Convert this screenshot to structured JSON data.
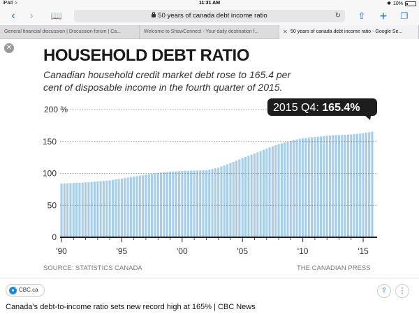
{
  "status_bar": {
    "device": "iPad",
    "time": "11:31 AM",
    "battery": "10%"
  },
  "toolbar": {
    "address": "50 years of canada debt income ratio"
  },
  "tabs": [
    {
      "label": "General financial discussion | Discussion forum | Ca...",
      "active": false
    },
    {
      "label": "Welcome to ShawConnect - Your daily destination f...",
      "active": false
    },
    {
      "label": "50 years of canada debt income ratio - Google Se...",
      "active": true
    }
  ],
  "article": {
    "headline": "HOUSEHOLD DEBT RATIO",
    "subhead": "Canadian household credit market debt rose to 165.4 per cent of disposable income in the fourth quarter of 2015.",
    "source": "SOURCE: STATISTICS CANADA",
    "credit": "THE CANADIAN PRESS"
  },
  "chart_data": {
    "type": "bar",
    "title": "HOUSEHOLD DEBT RATIO",
    "subtitle": "Canadian household credit market debt rose to 165.4 per cent of disposable income in the fourth quarter of 2015.",
    "xlabel": "",
    "ylabel": "",
    "ylim": [
      0,
      200
    ],
    "y_ticks": [
      "200 %",
      "150",
      "100",
      "50",
      "0"
    ],
    "x_ticks": [
      "'90",
      "'95",
      "'00",
      "'05",
      "'10",
      "'15"
    ],
    "x_range": [
      1990,
      2015.75
    ],
    "grid": true,
    "bar_color": "#a6cdec",
    "annotation": {
      "prefix": "2015 Q4: ",
      "value": "165.4%"
    },
    "anchors": [
      [
        1990,
        84
      ],
      [
        1992,
        86
      ],
      [
        1994,
        89
      ],
      [
        1996,
        95
      ],
      [
        1998,
        101
      ],
      [
        2000,
        104
      ],
      [
        2002,
        105
      ],
      [
        2003,
        109
      ],
      [
        2004,
        116
      ],
      [
        2005,
        124
      ],
      [
        2006,
        131
      ],
      [
        2007,
        139
      ],
      [
        2008,
        146
      ],
      [
        2009,
        151
      ],
      [
        2010,
        155
      ],
      [
        2011,
        157
      ],
      [
        2012,
        159
      ],
      [
        2013,
        160
      ],
      [
        2014,
        161
      ],
      [
        2015,
        163
      ],
      [
        2015.75,
        165.4
      ]
    ]
  },
  "info_bar": {
    "site": "CBC.ca",
    "caption": "Canada's debt-to-income ratio sets new record high at 165% | CBC News"
  }
}
